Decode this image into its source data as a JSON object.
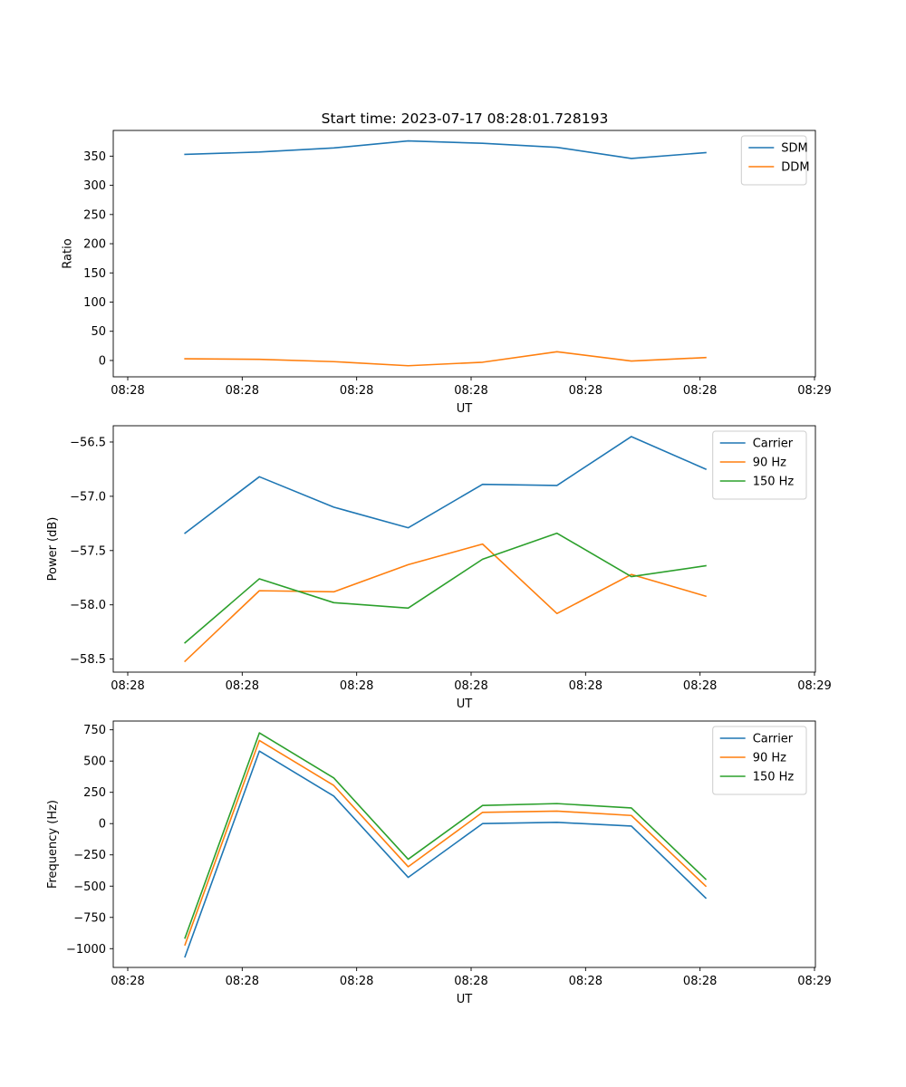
{
  "figure": {
    "title": "Start time: 2023-07-17 08:28:01.728193",
    "x_tick_labels": [
      "08:28",
      "08:28",
      "08:28",
      "08:28",
      "08:28",
      "08:28",
      "08:29"
    ]
  },
  "colors": {
    "blue": "#1f77b4",
    "orange": "#ff7f0e",
    "green": "#2ca02c"
  },
  "chart_data": [
    {
      "type": "line",
      "title": "Start time: 2023-07-17 08:28:01.728193",
      "xlabel": "UT",
      "ylabel": "Ratio",
      "x": [
        0.5,
        1.15,
        1.8,
        2.45,
        3.1,
        3.75,
        4.4,
        5.05
      ],
      "xlim": [
        -0.0,
        6.0
      ],
      "x_ticks": [
        0,
        1,
        2,
        3,
        4,
        5,
        6
      ],
      "x_tick_labels": [
        "08:28",
        "08:28",
        "08:28",
        "08:28",
        "08:28",
        "08:28",
        "08:29"
      ],
      "ylim": [
        -28,
        394
      ],
      "y_ticks": [
        0,
        50,
        100,
        150,
        200,
        250,
        300,
        350
      ],
      "y_tick_labels": [
        "0",
        "50",
        "100",
        "150",
        "200",
        "250",
        "300",
        "350"
      ],
      "legend_position": "top-right",
      "series": [
        {
          "name": "SDM",
          "color": "#1f77b4",
          "values": [
            353,
            357,
            364,
            376,
            372,
            365,
            346,
            356
          ]
        },
        {
          "name": "DDM",
          "color": "#ff7f0e",
          "values": [
            3,
            2,
            -2,
            -9,
            -3,
            15,
            -1,
            5
          ]
        }
      ]
    },
    {
      "type": "line",
      "title": "",
      "xlabel": "UT",
      "ylabel": "Power (dB)",
      "x": [
        0.5,
        1.15,
        1.8,
        2.45,
        3.1,
        3.75,
        4.4,
        5.05
      ],
      "xlim": [
        -0.0,
        6.0
      ],
      "x_ticks": [
        0,
        1,
        2,
        3,
        4,
        5,
        6
      ],
      "x_tick_labels": [
        "08:28",
        "08:28",
        "08:28",
        "08:28",
        "08:28",
        "08:28",
        "08:29"
      ],
      "ylim": [
        -58.62,
        -56.35
      ],
      "y_ticks": [
        -58.5,
        -58.0,
        -57.5,
        -57.0,
        -56.5
      ],
      "y_tick_labels": [
        "−58.5",
        "−58.0",
        "−57.5",
        "−57.0",
        "−56.5"
      ],
      "legend_position": "top-right",
      "series": [
        {
          "name": "Carrier",
          "color": "#1f77b4",
          "values": [
            -57.34,
            -56.82,
            -57.1,
            -57.29,
            -56.89,
            -56.9,
            -56.45,
            -56.75
          ]
        },
        {
          "name": "90 Hz",
          "color": "#ff7f0e",
          "values": [
            -58.52,
            -57.87,
            -57.88,
            -57.63,
            -57.44,
            -58.08,
            -57.72,
            -57.92
          ]
        },
        {
          "name": "150 Hz",
          "color": "#2ca02c",
          "values": [
            -58.35,
            -57.76,
            -57.98,
            -58.03,
            -57.58,
            -57.34,
            -57.74,
            -57.64
          ]
        }
      ]
    },
    {
      "type": "line",
      "title": "",
      "xlabel": "UT",
      "ylabel": "Frequency (Hz)",
      "x": [
        0.5,
        1.15,
        1.8,
        2.45,
        3.1,
        3.75,
        4.4,
        5.05
      ],
      "xlim": [
        -0.0,
        6.0
      ],
      "x_ticks": [
        0,
        1,
        2,
        3,
        4,
        5,
        6
      ],
      "x_tick_labels": [
        "08:28",
        "08:28",
        "08:28",
        "08:28",
        "08:28",
        "08:28",
        "08:29"
      ],
      "ylim": [
        -1150,
        820
      ],
      "y_ticks": [
        -1000,
        -750,
        -500,
        -250,
        0,
        250,
        500,
        750
      ],
      "y_tick_labels": [
        "−1000",
        "−750",
        "−500",
        "−250",
        "0",
        "250",
        "500",
        "750"
      ],
      "legend_position": "top-right",
      "series": [
        {
          "name": "Carrier",
          "color": "#1f77b4",
          "values": [
            -1065,
            580,
            220,
            -430,
            0,
            10,
            -20,
            -595
          ]
        },
        {
          "name": "90 Hz",
          "color": "#ff7f0e",
          "values": [
            -970,
            665,
            305,
            -345,
            90,
            100,
            65,
            -500
          ]
        },
        {
          "name": "150 Hz",
          "color": "#2ca02c",
          "values": [
            -915,
            725,
            365,
            -285,
            145,
            160,
            125,
            -445
          ]
        }
      ]
    }
  ]
}
